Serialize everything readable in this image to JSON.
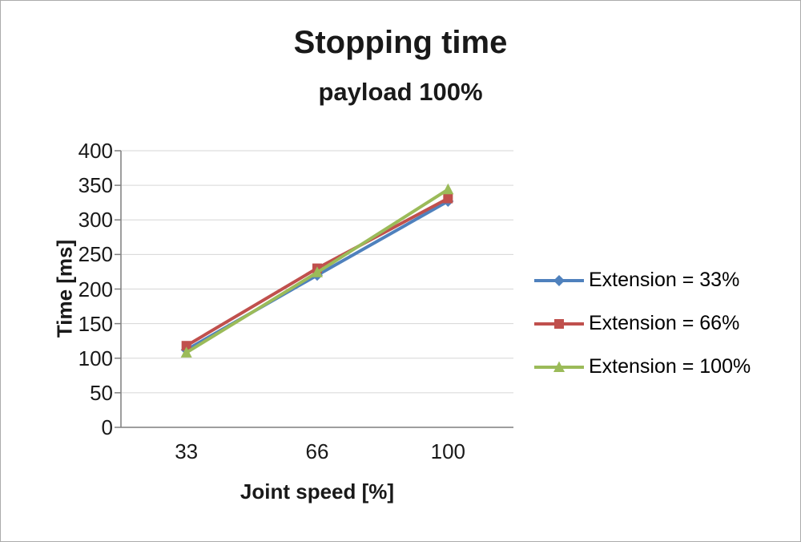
{
  "chart_data": {
    "type": "line",
    "title": "Stopping time",
    "subtitle": "payload 100%",
    "xlabel": "Joint speed [%]",
    "ylabel": "Time [ms]",
    "categories": [
      "33",
      "66",
      "100"
    ],
    "series": [
      {
        "name": "Extension = 33%",
        "marker": "diamond",
        "color": "#4F81BD",
        "values": [
          112,
          220,
          327
        ]
      },
      {
        "name": "Extension = 66%",
        "marker": "square",
        "color": "#C0504D",
        "values": [
          118,
          230,
          331
        ]
      },
      {
        "name": "Extension = 100%",
        "marker": "triangle",
        "color": "#9BBB59",
        "values": [
          108,
          224,
          344
        ]
      }
    ],
    "ylim": [
      0,
      400
    ],
    "ytick_step": 50,
    "grid": true,
    "legend_position": "right",
    "colors": {
      "axis": "#7f7f7f",
      "grid": "#d6d6d6",
      "text": "#191919"
    }
  }
}
